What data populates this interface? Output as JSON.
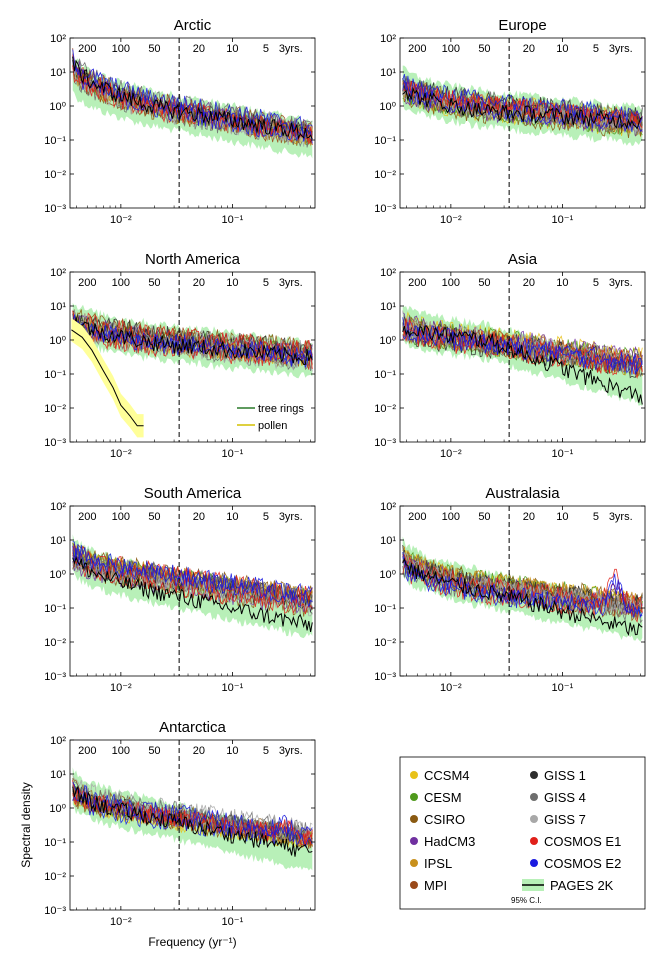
{
  "chart_data": {
    "type": "line",
    "xscale": "log",
    "yscale": "log",
    "xlim": [
      0.0035,
      0.55
    ],
    "ylim": [
      0.001,
      100
    ],
    "xlabel": "Frequency (yr⁻¹)",
    "ylabel": "Spectral density",
    "y_tick_labels": [
      "10⁻³",
      "10⁻²",
      "10⁻¹",
      "10⁰",
      "10¹",
      "10²"
    ],
    "y_tick_values": [
      0.001,
      0.01,
      0.1,
      1,
      10,
      100
    ],
    "x_tick_labels": [
      "10⁻²",
      "10⁻¹"
    ],
    "x_tick_values": [
      0.01,
      0.1
    ],
    "period_labels": [
      {
        "text": "200",
        "freq": 0.005
      },
      {
        "text": "100",
        "freq": 0.01
      },
      {
        "text": "50",
        "freq": 0.02
      },
      {
        "text": "20",
        "freq": 0.05
      },
      {
        "text": "10",
        "freq": 0.1
      },
      {
        "text": "5",
        "freq": 0.2
      },
      {
        "text": "3yrs.",
        "freq": 0.3333
      }
    ],
    "dashed_line_freq": 0.0333,
    "models": [
      {
        "name": "CCSM4",
        "color": "#e8c21a"
      },
      {
        "name": "CESM",
        "color": "#4f9a1c"
      },
      {
        "name": "CSIRO",
        "color": "#8a5a12"
      },
      {
        "name": "HadCM3",
        "color": "#7030a0"
      },
      {
        "name": "IPSL",
        "color": "#c8901c"
      },
      {
        "name": "MPI",
        "color": "#9a4a1a"
      },
      {
        "name": "GISS 1",
        "color": "#2e2e2e"
      },
      {
        "name": "GISS 4",
        "color": "#6e6e6e"
      },
      {
        "name": "GISS 7",
        "color": "#a8a8a8"
      },
      {
        "name": "COSMOS E1",
        "color": "#e0201a"
      },
      {
        "name": "COSMOS E2",
        "color": "#1a1ae0"
      }
    ],
    "obs": {
      "name": "PAGES 2K",
      "color": "#000000",
      "ci_color": "#b8f0b8",
      "ci_label": "95% C.I."
    },
    "panels": [
      {
        "title": "Arctic",
        "model_level": [
          20,
          1.0,
          0.15
        ],
        "obs_level": [
          25,
          0.9,
          0.15
        ],
        "ci_level": [
          12,
          0.9,
          0.12
        ],
        "cosmos_peak": 1.0
      },
      {
        "title": "Europe",
        "model_level": [
          4,
          0.9,
          0.3
        ],
        "obs_level": [
          4,
          0.7,
          0.35
        ],
        "ci_level": [
          5,
          0.9,
          0.3
        ],
        "cosmos_peak": 1.0
      },
      {
        "title": "North America",
        "model_level": [
          4,
          1.0,
          0.35
        ],
        "obs_level": [
          5,
          0.8,
          0.3
        ],
        "ci_level": [
          5,
          1.0,
          0.3
        ],
        "cosmos_peak": 1.0,
        "inset": {
          "entries": [
            {
              "name": "tree rings",
              "color": "#2a7a2a"
            },
            {
              "name": "pollen",
              "color": "#d4c000"
            }
          ],
          "pollen": {
            "x": [
              0.0036,
              0.0045,
              0.0055,
              0.007,
              0.0085,
              0.01,
              0.012,
              0.014,
              0.016
            ],
            "y": [
              2.0,
              1.2,
              0.5,
              0.12,
              0.04,
              0.012,
              0.006,
              0.003,
              0.003
            ],
            "band_color": "#ffff99"
          }
        }
      },
      {
        "title": "Asia",
        "model_level": [
          3,
          0.9,
          0.2
        ],
        "obs_level": [
          3,
          1.0,
          0.02
        ],
        "ci_level": [
          4,
          1.0,
          0.05
        ],
        "cosmos_peak": 1.0
      },
      {
        "title": "South America",
        "model_level": [
          4,
          0.8,
          0.15
        ],
        "obs_level": [
          4,
          0.3,
          0.03
        ],
        "ci_level": [
          5,
          0.5,
          0.05
        ],
        "cosmos_peak": 1.0
      },
      {
        "title": "Australasia",
        "model_level": [
          3,
          0.4,
          0.1
        ],
        "obs_level": [
          3,
          0.3,
          0.02
        ],
        "ci_level": [
          4,
          0.4,
          0.04
        ],
        "cosmos_peak": 6.0
      },
      {
        "title": "Antarctica",
        "model_level": [
          4,
          0.7,
          0.15
        ],
        "obs_level": [
          4,
          0.5,
          0.05
        ],
        "ci_level": [
          5,
          0.6,
          0.05
        ],
        "cosmos_peak": 1.5
      }
    ]
  }
}
